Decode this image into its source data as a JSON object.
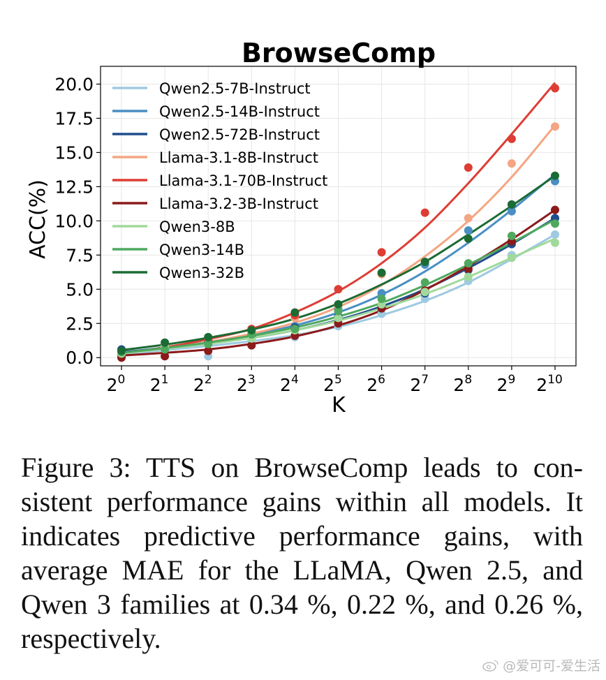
{
  "chart_data": {
    "type": "line",
    "title": "BrowseComp",
    "xlabel": "K",
    "ylabel": "ACC(%)",
    "x": [
      0,
      1,
      2,
      3,
      4,
      5,
      6,
      7,
      8,
      9,
      10
    ],
    "x_tick_labels": [
      {
        "base": "2",
        "exp": "0"
      },
      {
        "base": "2",
        "exp": "1"
      },
      {
        "base": "2",
        "exp": "2"
      },
      {
        "base": "2",
        "exp": "3"
      },
      {
        "base": "2",
        "exp": "4"
      },
      {
        "base": "2",
        "exp": "5"
      },
      {
        "base": "2",
        "exp": "6"
      },
      {
        "base": "2",
        "exp": "7"
      },
      {
        "base": "2",
        "exp": "8"
      },
      {
        "base": "2",
        "exp": "9"
      },
      {
        "base": "2",
        "exp": "10"
      }
    ],
    "x_scale": "log2",
    "y_ticks": [
      "0.0",
      "2.5",
      "5.0",
      "7.5",
      "10.0",
      "12.5",
      "15.0",
      "17.5",
      "20.0"
    ],
    "ylim": [
      -0.6,
      21.3
    ],
    "grid": true,
    "legend_position": "top-left",
    "series": [
      {
        "name": "Qwen2.5-7B-Instruct",
        "color": "#9ecae1",
        "points": [
          0.3,
          0.7,
          0.1,
          1.3,
          1.5,
          2.3,
          3.2,
          4.3,
          5.6,
          7.5,
          9.0
        ],
        "fit": [
          0.22,
          0.55,
          0.85,
          1.2,
          1.65,
          2.25,
          3.1,
          4.15,
          5.5,
          7.2,
          9.0
        ]
      },
      {
        "name": "Qwen2.5-14B-Instruct",
        "color": "#4a8fc4",
        "points": [
          0.5,
          0.8,
          1.1,
          1.5,
          2.3,
          3.6,
          4.7,
          6.8,
          9.3,
          10.7,
          12.9
        ],
        "fit": [
          0.35,
          0.75,
          1.15,
          1.65,
          2.35,
          3.3,
          4.6,
          6.3,
          8.4,
          10.8,
          13.4
        ]
      },
      {
        "name": "Qwen2.5-72B-Instruct",
        "color": "#1f4e8c",
        "points": [
          0.6,
          0.8,
          1.2,
          1.6,
          2.2,
          3.0,
          3.8,
          4.7,
          6.4,
          8.3,
          10.2
        ],
        "fit": [
          0.4,
          0.7,
          1.05,
          1.45,
          2.0,
          2.75,
          3.75,
          5.0,
          6.55,
          8.3,
          10.2
        ]
      },
      {
        "name": "Llama-3.1-8B-Instruct",
        "color": "#f4a582",
        "points": [
          0.1,
          0.7,
          1.3,
          1.9,
          2.9,
          3.8,
          6.1,
          7.0,
          10.2,
          14.2,
          16.9
        ],
        "fit": [
          0.3,
          0.7,
          1.15,
          1.75,
          2.55,
          3.7,
          5.3,
          7.4,
          10.0,
          13.2,
          17.0
        ]
      },
      {
        "name": "Llama-3.1-70B-Instruct",
        "color": "#de3d34",
        "points": [
          0.2,
          0.9,
          1.3,
          2.1,
          3.1,
          5.0,
          7.7,
          10.6,
          13.9,
          16.0,
          19.7
        ],
        "fit": [
          0.3,
          0.75,
          1.35,
          2.1,
          3.3,
          4.85,
          6.9,
          9.5,
          12.75,
          16.35,
          20.1
        ]
      },
      {
        "name": "Llama-3.2-3B-Instruct",
        "color": "#8b1a1a",
        "points": [
          0.0,
          0.1,
          0.5,
          0.9,
          1.6,
          2.5,
          3.6,
          4.9,
          6.5,
          8.5,
          10.8
        ],
        "fit": [
          0.15,
          0.35,
          0.6,
          1.0,
          1.55,
          2.35,
          3.45,
          4.95,
          6.7,
          8.65,
          10.8
        ]
      },
      {
        "name": "Qwen3-8B",
        "color": "#a1d99b",
        "points": [
          0.3,
          0.8,
          1.0,
          1.4,
          2.0,
          2.9,
          3.9,
          4.8,
          5.9,
          7.3,
          8.4
        ],
        "fit": [
          0.3,
          0.65,
          1.0,
          1.45,
          2.0,
          2.7,
          3.6,
          4.65,
          5.9,
          7.3,
          8.7
        ]
      },
      {
        "name": "Qwen3-14B",
        "color": "#4fa85e",
        "points": [
          0.4,
          0.6,
          1.0,
          1.7,
          2.1,
          3.4,
          4.3,
          5.5,
          6.9,
          8.9,
          9.8
        ],
        "fit": [
          0.35,
          0.7,
          1.1,
          1.6,
          2.2,
          3.0,
          4.0,
          5.3,
          6.8,
          8.4,
          10.1
        ]
      },
      {
        "name": "Qwen3-32B",
        "color": "#1b6b34",
        "points": [
          0.5,
          1.1,
          1.5,
          2.0,
          3.3,
          3.9,
          6.2,
          7.0,
          8.7,
          11.2,
          13.3
        ],
        "fit": [
          0.55,
          0.95,
          1.45,
          2.05,
          2.85,
          3.95,
          5.35,
          7.0,
          9.0,
          11.1,
          13.3
        ]
      }
    ]
  },
  "caption": {
    "line1": "Figure 3: TTS on BrowseComp leads to con-",
    "line2": "sistent performance gains within all models.",
    "line3": "It indicates predictive performance gains,",
    "line4": "with average MAE for the LLaMA, Qwen",
    "line5": "2.5, and Qwen 3 families at 0.34 %, 0.22 %,",
    "line6": "and 0.26 %, respectively."
  },
  "watermark": {
    "text": "@爱可可-爱生活"
  }
}
